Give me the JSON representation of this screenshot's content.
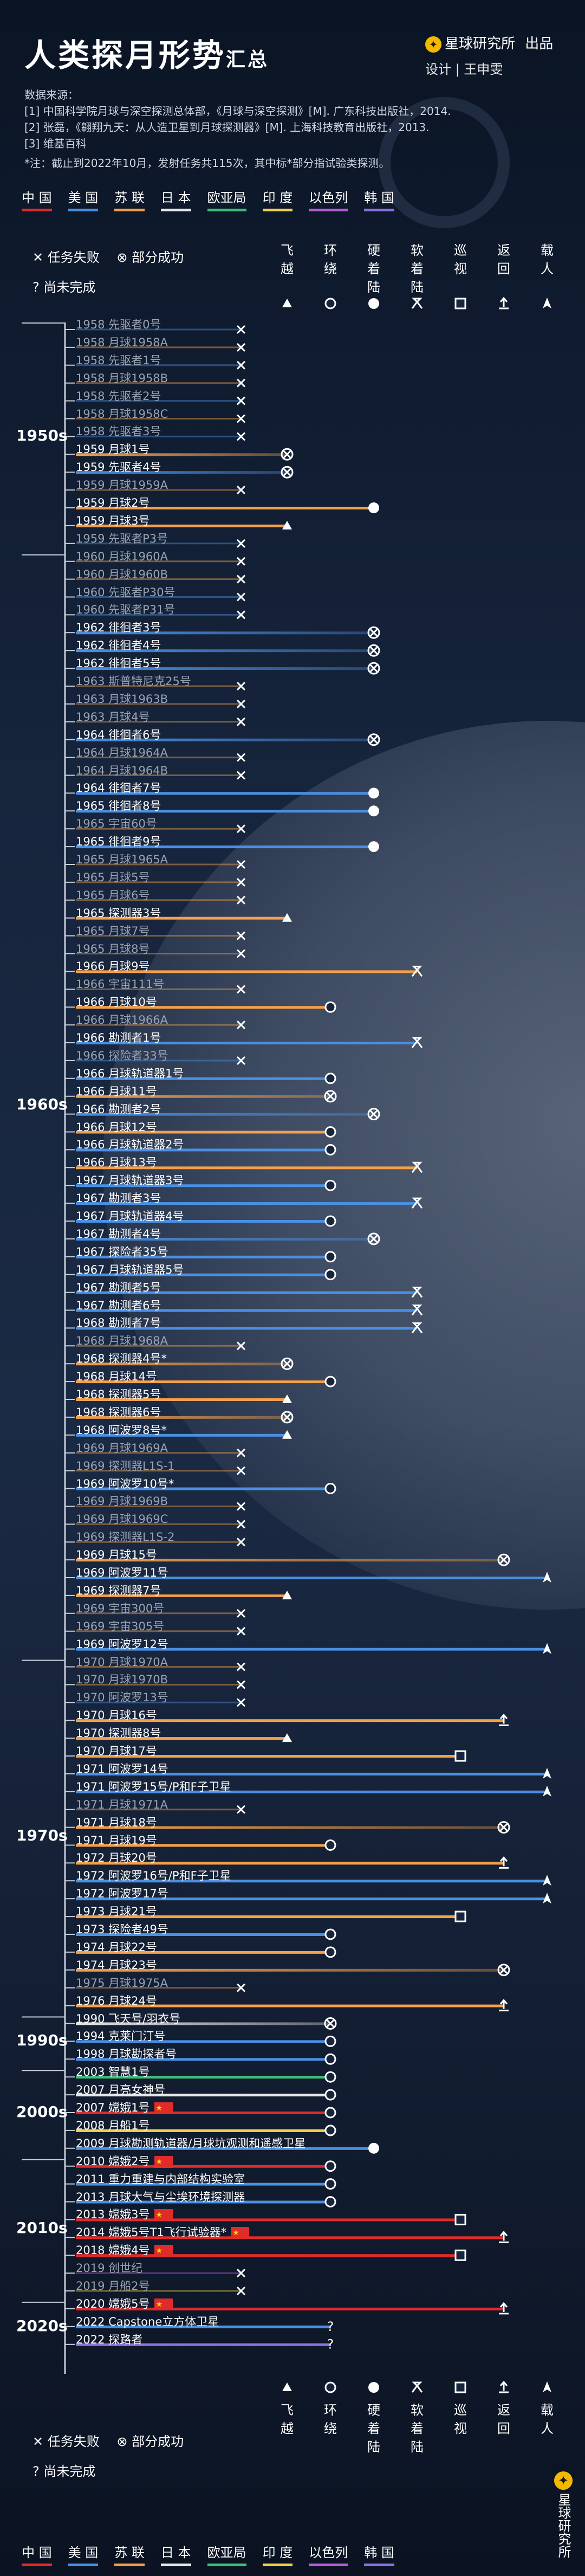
{
  "header": {
    "title": "人类探月形势",
    "title_small": "汇总",
    "brand": "星球研究所",
    "brand_suffix": "出品",
    "credit": "设计 | 王申雯",
    "brand_icon": "star-planet-icon"
  },
  "sources": {
    "heading": "数据来源：",
    "items": [
      "[1] 中国科学院月球与深空探测总体部，《月球与深空探测》[M]. 广东科技出版社，2014.",
      "[2] 张磊，《翱翔九天：从人造卫星到月球探测器》[M]. 上海科技教育出版社，2013.",
      "[3] 维基百科"
    ],
    "note": "*注：截止到2022年10月，发射任务共115次，其中标*部分指试验类探测。"
  },
  "countries": [
    {
      "label": "中 国",
      "color": "#e02b2b"
    },
    {
      "label": "美 国",
      "color": "#4a90e2"
    },
    {
      "label": "苏 联",
      "color": "#f4a04a"
    },
    {
      "label": "日 本",
      "color": "#e8e8e8"
    },
    {
      "label": "欧亚局",
      "color": "#3ec07a"
    },
    {
      "label": "印 度",
      "color": "#f2d24a"
    },
    {
      "label": "以色列",
      "color": "#b35fd6"
    },
    {
      "label": "韩 国",
      "color": "#8a72e0"
    }
  ],
  "status_legend": {
    "failed": "任务失败",
    "partial": "部分成功",
    "pending": "尚未完成"
  },
  "columns": [
    {
      "label": "飞越",
      "icon": "triangle"
    },
    {
      "label": "环绕",
      "icon": "circle"
    },
    {
      "label": "硬着陆",
      "icon": "dot"
    },
    {
      "label": "软着陆",
      "icon": "lander"
    },
    {
      "label": "巡视",
      "icon": "square"
    },
    {
      "label": "返回",
      "icon": "return"
    },
    {
      "label": "载人",
      "icon": "rocket"
    }
  ],
  "decades": [
    "1950s",
    "1960s",
    "1970s",
    "1990s",
    "2000s",
    "2010s",
    "2020s"
  ],
  "chart_data": {
    "type": "table",
    "title": "人类探月形势汇总",
    "levels": [
      "飞越",
      "环绕",
      "硬着陆",
      "软着陆",
      "巡视",
      "返回",
      "载人"
    ],
    "missions": [
      {
        "year": "1958",
        "name": "先驱者0号",
        "c": "US",
        "lv": 0,
        "st": "F"
      },
      {
        "year": "1958",
        "name": "月球1958A",
        "c": "SU",
        "lv": 0,
        "st": "F"
      },
      {
        "year": "1958",
        "name": "先驱者1号",
        "c": "US",
        "lv": 0,
        "st": "F"
      },
      {
        "year": "1958",
        "name": "月球1958B",
        "c": "SU",
        "lv": 0,
        "st": "F"
      },
      {
        "year": "1958",
        "name": "先驱者2号",
        "c": "US",
        "lv": 0,
        "st": "F"
      },
      {
        "year": "1958",
        "name": "月球1958C",
        "c": "SU",
        "lv": 0,
        "st": "F"
      },
      {
        "year": "1958",
        "name": "先驱者3号",
        "c": "US",
        "lv": 0,
        "st": "F"
      },
      {
        "year": "1959",
        "name": "月球1号",
        "c": "SU",
        "lv": 1,
        "st": "P"
      },
      {
        "year": "1959",
        "name": "先驱者4号",
        "c": "US",
        "lv": 1,
        "st": "P"
      },
      {
        "year": "1959",
        "name": "月球1959A",
        "c": "SU",
        "lv": 0,
        "st": "F"
      },
      {
        "year": "1959",
        "name": "月球2号",
        "c": "SU",
        "lv": 3,
        "st": "S"
      },
      {
        "year": "1959",
        "name": "月球3号",
        "c": "SU",
        "lv": 1,
        "st": "S"
      },
      {
        "year": "1959",
        "name": "先驱者P3号",
        "c": "US",
        "lv": 0,
        "st": "F"
      },
      {
        "year": "1960",
        "name": "月球1960A",
        "c": "SU",
        "lv": 0,
        "st": "F"
      },
      {
        "year": "1960",
        "name": "月球1960B",
        "c": "SU",
        "lv": 0,
        "st": "F"
      },
      {
        "year": "1960",
        "name": "先驱者P30号",
        "c": "US",
        "lv": 0,
        "st": "F"
      },
      {
        "year": "1960",
        "name": "先驱者P31号",
        "c": "US",
        "lv": 0,
        "st": "F"
      },
      {
        "year": "1962",
        "name": "徘徊者3号",
        "c": "US",
        "lv": 3,
        "st": "P"
      },
      {
        "year": "1962",
        "name": "徘徊者4号",
        "c": "US",
        "lv": 3,
        "st": "P"
      },
      {
        "year": "1962",
        "name": "徘徊者5号",
        "c": "US",
        "lv": 3,
        "st": "P"
      },
      {
        "year": "1963",
        "name": "斯普特尼克25号",
        "c": "SU",
        "lv": 0,
        "st": "F"
      },
      {
        "year": "1963",
        "name": "月球1963B",
        "c": "SU",
        "lv": 0,
        "st": "F"
      },
      {
        "year": "1963",
        "name": "月球4号",
        "c": "SU",
        "lv": 0,
        "st": "F"
      },
      {
        "year": "1964",
        "name": "徘徊者6号",
        "c": "US",
        "lv": 3,
        "st": "P"
      },
      {
        "year": "1964",
        "name": "月球1964A",
        "c": "SU",
        "lv": 0,
        "st": "F"
      },
      {
        "year": "1964",
        "name": "月球1964B",
        "c": "SU",
        "lv": 0,
        "st": "F"
      },
      {
        "year": "1964",
        "name": "徘徊者7号",
        "c": "US",
        "lv": 3,
        "st": "S"
      },
      {
        "year": "1965",
        "name": "徘徊者8号",
        "c": "US",
        "lv": 3,
        "st": "S"
      },
      {
        "year": "1965",
        "name": "宇宙60号",
        "c": "SU",
        "lv": 0,
        "st": "F"
      },
      {
        "year": "1965",
        "name": "徘徊者9号",
        "c": "US",
        "lv": 3,
        "st": "S"
      },
      {
        "year": "1965",
        "name": "月球1965A",
        "c": "SU",
        "lv": 0,
        "st": "F"
      },
      {
        "year": "1965",
        "name": "月球5号",
        "c": "SU",
        "lv": 0,
        "st": "F"
      },
      {
        "year": "1965",
        "name": "月球6号",
        "c": "SU",
        "lv": 0,
        "st": "F"
      },
      {
        "year": "1965",
        "name": "探测器3号",
        "c": "SU",
        "lv": 1,
        "st": "S"
      },
      {
        "year": "1965",
        "name": "月球7号",
        "c": "SU",
        "lv": 0,
        "st": "F"
      },
      {
        "year": "1965",
        "name": "月球8号",
        "c": "SU",
        "lv": 0,
        "st": "F"
      },
      {
        "year": "1966",
        "name": "月球9号",
        "c": "SU",
        "lv": 4,
        "st": "S"
      },
      {
        "year": "1966",
        "name": "宇宙111号",
        "c": "SU",
        "lv": 0,
        "st": "F"
      },
      {
        "year": "1966",
        "name": "月球10号",
        "c": "SU",
        "lv": 2,
        "st": "S"
      },
      {
        "year": "1966",
        "name": "月球1966A",
        "c": "SU",
        "lv": 0,
        "st": "F"
      },
      {
        "year": "1966",
        "name": "勘测者1号",
        "c": "US",
        "lv": 4,
        "st": "S"
      },
      {
        "year": "1966",
        "name": "探险者33号",
        "c": "US",
        "lv": 0,
        "st": "F"
      },
      {
        "year": "1966",
        "name": "月球轨道器1号",
        "c": "US",
        "lv": 2,
        "st": "S"
      },
      {
        "year": "1966",
        "name": "月球11号",
        "c": "SU",
        "lv": 2,
        "st": "P"
      },
      {
        "year": "1966",
        "name": "勘测者2号",
        "c": "US",
        "lv": 3,
        "st": "P"
      },
      {
        "year": "1966",
        "name": "月球12号",
        "c": "SU",
        "lv": 2,
        "st": "S"
      },
      {
        "year": "1966",
        "name": "月球轨道器2号",
        "c": "US",
        "lv": 2,
        "st": "S"
      },
      {
        "year": "1966",
        "name": "月球13号",
        "c": "SU",
        "lv": 4,
        "st": "S"
      },
      {
        "year": "1967",
        "name": "月球轨道器3号",
        "c": "US",
        "lv": 2,
        "st": "S"
      },
      {
        "year": "1967",
        "name": "勘测者3号",
        "c": "US",
        "lv": 4,
        "st": "S"
      },
      {
        "year": "1967",
        "name": "月球轨道器4号",
        "c": "US",
        "lv": 2,
        "st": "S"
      },
      {
        "year": "1967",
        "name": "勘测者4号",
        "c": "US",
        "lv": 3,
        "st": "P"
      },
      {
        "year": "1967",
        "name": "探险者35号",
        "c": "US",
        "lv": 2,
        "st": "S"
      },
      {
        "year": "1967",
        "name": "月球轨道器5号",
        "c": "US",
        "lv": 2,
        "st": "S"
      },
      {
        "year": "1967",
        "name": "勘测者5号",
        "c": "US",
        "lv": 4,
        "st": "S"
      },
      {
        "year": "1967",
        "name": "勘测者6号",
        "c": "US",
        "lv": 4,
        "st": "S"
      },
      {
        "year": "1968",
        "name": "勘测者7号",
        "c": "US",
        "lv": 4,
        "st": "S"
      },
      {
        "year": "1968",
        "name": "月球1968A",
        "c": "SU",
        "lv": 0,
        "st": "F"
      },
      {
        "year": "1968",
        "name": "探测器4号*",
        "c": "SU",
        "lv": 1,
        "st": "P"
      },
      {
        "year": "1968",
        "name": "月球14号",
        "c": "SU",
        "lv": 2,
        "st": "S"
      },
      {
        "year": "1968",
        "name": "探测器5号",
        "c": "SU",
        "lv": 1,
        "st": "S"
      },
      {
        "year": "1968",
        "name": "探测器6号",
        "c": "SU",
        "lv": 1,
        "st": "P"
      },
      {
        "year": "1968",
        "name": "阿波罗8号*",
        "c": "US",
        "lv": 1,
        "st": "S"
      },
      {
        "year": "1969",
        "name": "月球1969A",
        "c": "SU",
        "lv": 0,
        "st": "F"
      },
      {
        "year": "1969",
        "name": "探测器L1S-1",
        "c": "SU",
        "lv": 0,
        "st": "F"
      },
      {
        "year": "1969",
        "name": "阿波罗10号*",
        "c": "US",
        "lv": 2,
        "st": "S"
      },
      {
        "year": "1969",
        "name": "月球1969B",
        "c": "SU",
        "lv": 0,
        "st": "F"
      },
      {
        "year": "1969",
        "name": "月球1969C",
        "c": "SU",
        "lv": 0,
        "st": "F"
      },
      {
        "year": "1969",
        "name": "探测器L1S-2",
        "c": "SU",
        "lv": 0,
        "st": "F"
      },
      {
        "year": "1969",
        "name": "月球15号",
        "c": "SU",
        "lv": 6,
        "st": "P"
      },
      {
        "year": "1969",
        "name": "阿波罗11号",
        "c": "US",
        "lv": 7,
        "st": "S"
      },
      {
        "year": "1969",
        "name": "探测器7号",
        "c": "SU",
        "lv": 1,
        "st": "S"
      },
      {
        "year": "1969",
        "name": "宇宙300号",
        "c": "SU",
        "lv": 0,
        "st": "F"
      },
      {
        "year": "1969",
        "name": "宇宙305号",
        "c": "SU",
        "lv": 0,
        "st": "F"
      },
      {
        "year": "1969",
        "name": "阿波罗12号",
        "c": "US",
        "lv": 7,
        "st": "S"
      },
      {
        "year": "1970",
        "name": "月球1970A",
        "c": "SU",
        "lv": 0,
        "st": "F"
      },
      {
        "year": "1970",
        "name": "月球1970B",
        "c": "SU",
        "lv": 0,
        "st": "F"
      },
      {
        "year": "1970",
        "name": "阿波罗13号",
        "c": "US",
        "lv": 0,
        "st": "F"
      },
      {
        "year": "1970",
        "name": "月球16号",
        "c": "SU",
        "lv": 6,
        "st": "S"
      },
      {
        "year": "1970",
        "name": "探测器8号",
        "c": "SU",
        "lv": 1,
        "st": "S"
      },
      {
        "year": "1970",
        "name": "月球17号",
        "c": "SU",
        "lv": 5,
        "st": "S"
      },
      {
        "year": "1971",
        "name": "阿波罗14号",
        "c": "US",
        "lv": 7,
        "st": "S"
      },
      {
        "year": "1971",
        "name": "阿波罗15号/P和F子卫星",
        "c": "US",
        "lv": 7,
        "st": "S"
      },
      {
        "year": "1971",
        "name": "月球1971A",
        "c": "SU",
        "lv": 0,
        "st": "F"
      },
      {
        "year": "1971",
        "name": "月球18号",
        "c": "SU",
        "lv": 6,
        "st": "P"
      },
      {
        "year": "1971",
        "name": "月球19号",
        "c": "SU",
        "lv": 2,
        "st": "S"
      },
      {
        "year": "1972",
        "name": "月球20号",
        "c": "SU",
        "lv": 6,
        "st": "S"
      },
      {
        "year": "1972",
        "name": "阿波罗16号/P和F子卫星",
        "c": "US",
        "lv": 7,
        "st": "S"
      },
      {
        "year": "1972",
        "name": "阿波罗17号",
        "c": "US",
        "lv": 7,
        "st": "S"
      },
      {
        "year": "1973",
        "name": "月球21号",
        "c": "SU",
        "lv": 5,
        "st": "S"
      },
      {
        "year": "1973",
        "name": "探险者49号",
        "c": "US",
        "lv": 2,
        "st": "S"
      },
      {
        "year": "1974",
        "name": "月球22号",
        "c": "SU",
        "lv": 2,
        "st": "S"
      },
      {
        "year": "1974",
        "name": "月球23号",
        "c": "SU",
        "lv": 6,
        "st": "P"
      },
      {
        "year": "1975",
        "name": "月球1975A",
        "c": "SU",
        "lv": 0,
        "st": "F"
      },
      {
        "year": "1976",
        "name": "月球24号",
        "c": "SU",
        "lv": 6,
        "st": "S"
      },
      {
        "year": "1990",
        "name": "飞天号/羽衣号",
        "c": "JP",
        "lv": 2,
        "st": "P"
      },
      {
        "year": "1994",
        "name": "克莱门汀号",
        "c": "US",
        "lv": 2,
        "st": "S"
      },
      {
        "year": "1998",
        "name": "月球勘探者号",
        "c": "US",
        "lv": 2,
        "st": "S"
      },
      {
        "year": "2003",
        "name": "智慧1号",
        "c": "EU",
        "lv": 2,
        "st": "S"
      },
      {
        "year": "2007",
        "name": "月亮女神号",
        "c": "JP",
        "lv": 2,
        "st": "S"
      },
      {
        "year": "2007",
        "name": "嫦娥1号",
        "c": "CN",
        "lv": 2,
        "st": "S"
      },
      {
        "year": "2008",
        "name": "月船1号",
        "c": "IN",
        "lv": 2,
        "st": "S"
      },
      {
        "year": "2009",
        "name": "月球勘测轨道器/月球坑观测和遥感卫星",
        "c": "US",
        "lv": 3,
        "st": "S"
      },
      {
        "year": "2010",
        "name": "嫦娥2号",
        "c": "CN",
        "lv": 2,
        "st": "S"
      },
      {
        "year": "2011",
        "name": "重力重建与内部结构实验室",
        "c": "US",
        "lv": 2,
        "st": "S"
      },
      {
        "year": "2013",
        "name": "月球大气与尘埃环境探测器",
        "c": "US",
        "lv": 2,
        "st": "S"
      },
      {
        "year": "2013",
        "name": "嫦娥3号",
        "c": "CN",
        "lv": 5,
        "st": "S"
      },
      {
        "year": "2014",
        "name": "嫦娥5号T1飞行试验器*",
        "c": "CN",
        "lv": 6,
        "st": "S"
      },
      {
        "year": "2018",
        "name": "嫦娥4号",
        "c": "CN",
        "lv": 5,
        "st": "S"
      },
      {
        "year": "2019",
        "name": "创世纪",
        "c": "IL",
        "lv": 0,
        "st": "F"
      },
      {
        "year": "2019",
        "name": "月船2号",
        "c": "IN",
        "lv": 0,
        "st": "F"
      },
      {
        "year": "2020",
        "name": "嫦娥5号",
        "c": "CN",
        "lv": 6,
        "st": "S"
      },
      {
        "year": "2022",
        "name": "Capstone立方体卫星",
        "c": "US",
        "lv": 2,
        "st": "U"
      },
      {
        "year": "2022",
        "name": "探路者",
        "c": "KR",
        "lv": 2,
        "st": "U"
      }
    ]
  }
}
